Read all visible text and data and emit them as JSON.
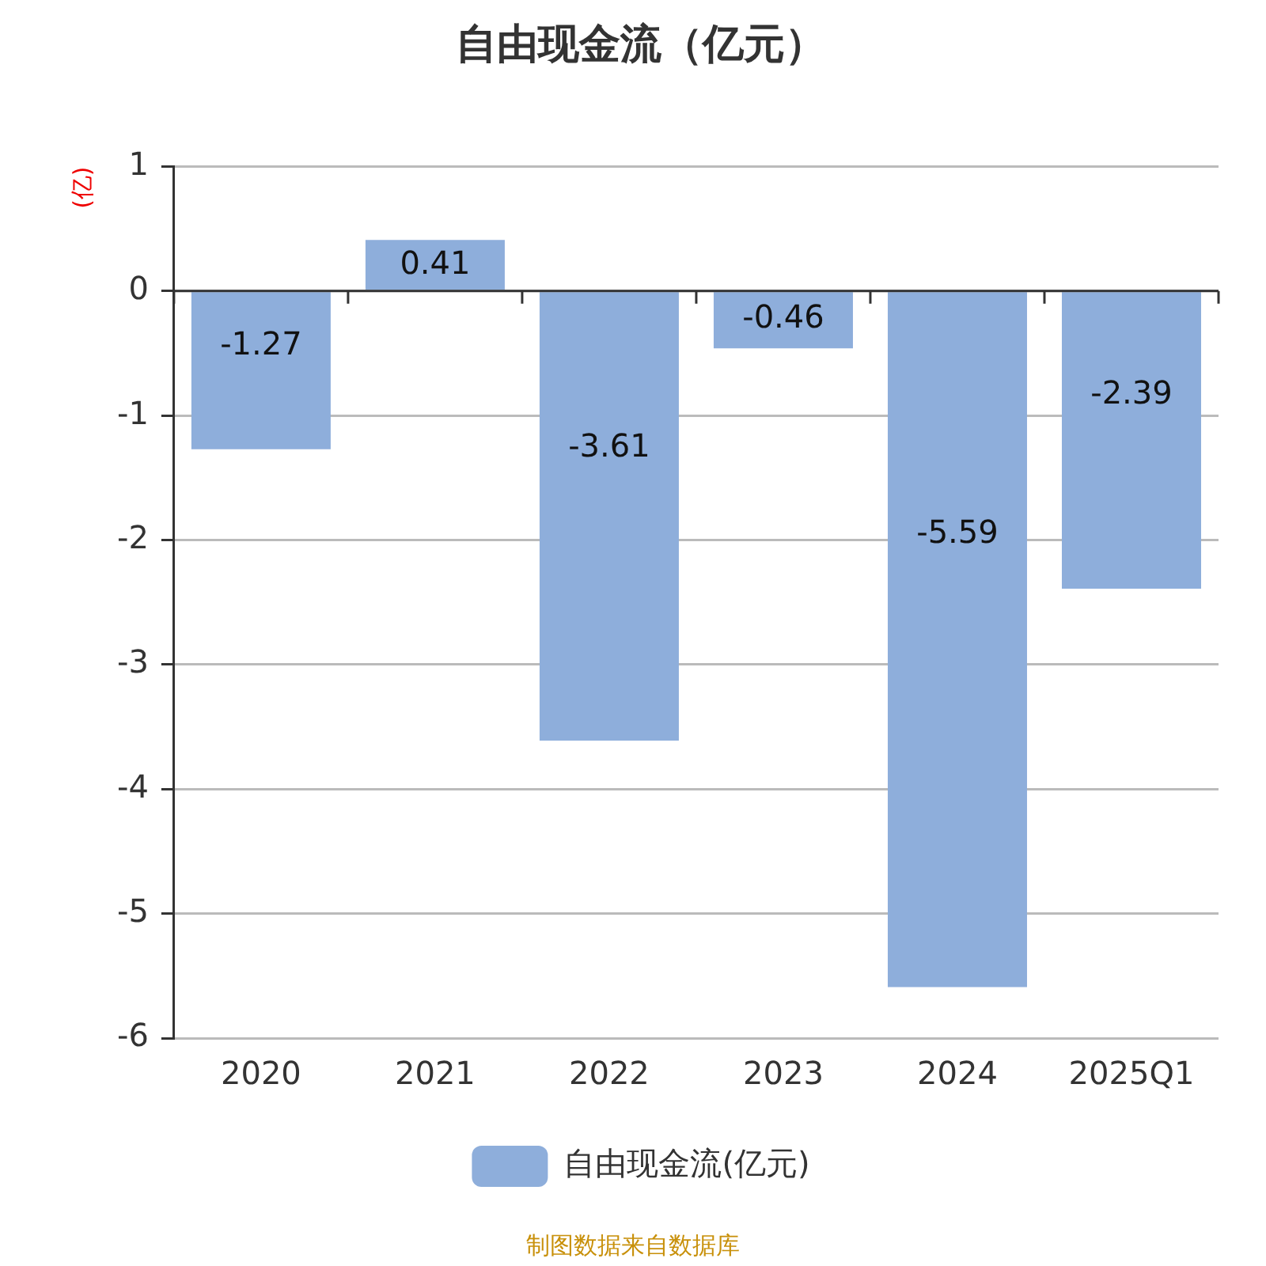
{
  "chart_data": {
    "type": "bar",
    "title": "自由现金流（亿元）",
    "ylabel": "(亿)",
    "categories": [
      "2020",
      "2021",
      "2022",
      "2023",
      "2024",
      "2025Q1"
    ],
    "series": [
      {
        "name": "自由现金流(亿元)",
        "color": "#8eaedb",
        "values": [
          -1.27,
          0.41,
          -3.61,
          -0.46,
          -5.59,
          -2.39
        ]
      }
    ],
    "ylim": [
      -6,
      1
    ],
    "yticks": [
      -6,
      -5,
      -4,
      -3,
      -2,
      -1,
      0,
      1
    ],
    "grid": "y",
    "legend": "bottom",
    "data_labels": true,
    "annotations": [
      "制图数据来自数据库"
    ]
  }
}
